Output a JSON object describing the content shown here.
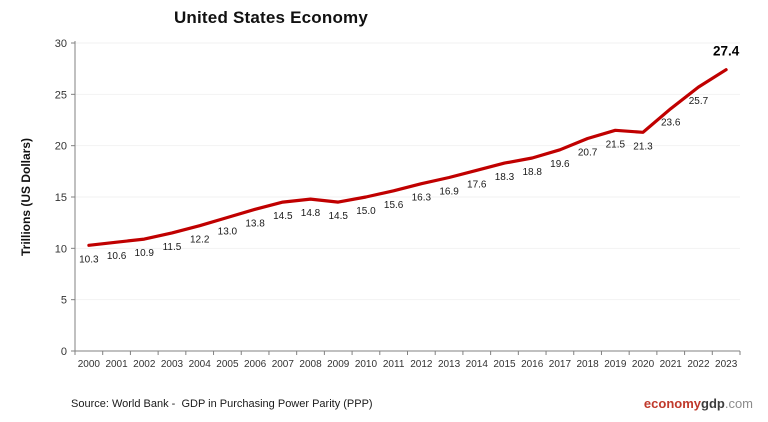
{
  "chart_data": {
    "type": "line",
    "title": "United States Economy",
    "xlabel": "",
    "ylabel": "Trillions (US Dollars)",
    "categories": [
      "2000",
      "2001",
      "2002",
      "2003",
      "2004",
      "2005",
      "2006",
      "2007",
      "2008",
      "2009",
      "2010",
      "2011",
      "2012",
      "2013",
      "2014",
      "2015",
      "2016",
      "2017",
      "2018",
      "2019",
      "2020",
      "2021",
      "2022",
      "2023"
    ],
    "values": [
      10.3,
      10.6,
      10.9,
      11.5,
      12.2,
      13.0,
      13.8,
      14.5,
      14.8,
      14.5,
      15.0,
      15.6,
      16.3,
      16.9,
      17.6,
      18.3,
      18.8,
      19.6,
      20.7,
      21.5,
      21.3,
      23.6,
      25.7,
      27.4
    ],
    "ylim": [
      0,
      30
    ],
    "yticks": [
      0,
      5,
      10,
      15,
      20,
      25,
      30
    ],
    "grid": true,
    "legend": "none",
    "data_labels": "below points, last point bold above",
    "line_color": "#c00000",
    "gridline_color": "#f2f2f2",
    "axis_color": "#808080",
    "tick_label_color": "#333333",
    "data_label_color": "#1a1a1a"
  },
  "footer": {
    "source": "Source: World Bank -  GDP in Purchasing Power Parity (PPP)",
    "logo": {
      "economy": "economy",
      "gdp": "gdp",
      "com": ".com",
      "economy_color": "#c0392b",
      "gdp_color": "#3d3d3d",
      "com_color": "#8c8c8c"
    }
  }
}
